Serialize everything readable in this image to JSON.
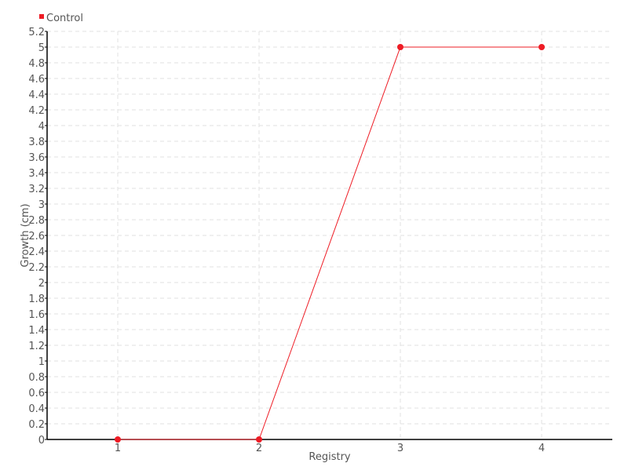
{
  "chart_data": {
    "type": "line",
    "title": "",
    "xlabel": "Registry",
    "ylabel": "Growth (cm)",
    "categories": [
      "1",
      "2",
      "3",
      "4"
    ],
    "series": [
      {
        "name": "Control",
        "values": [
          0,
          0,
          5,
          5
        ],
        "color": "#ee1c25"
      }
    ],
    "ylim": [
      0,
      5.2
    ],
    "yticks": [
      0,
      0.2,
      0.4,
      0.6,
      0.8,
      1,
      1.2,
      1.4,
      1.6,
      1.8,
      2,
      2.2,
      2.4,
      2.6,
      2.8,
      3,
      3.2,
      3.4,
      3.6,
      3.8,
      4,
      4.2,
      4.4,
      4.6,
      4.8,
      5,
      5.2
    ],
    "grid": true,
    "legend_position": "top-left"
  }
}
